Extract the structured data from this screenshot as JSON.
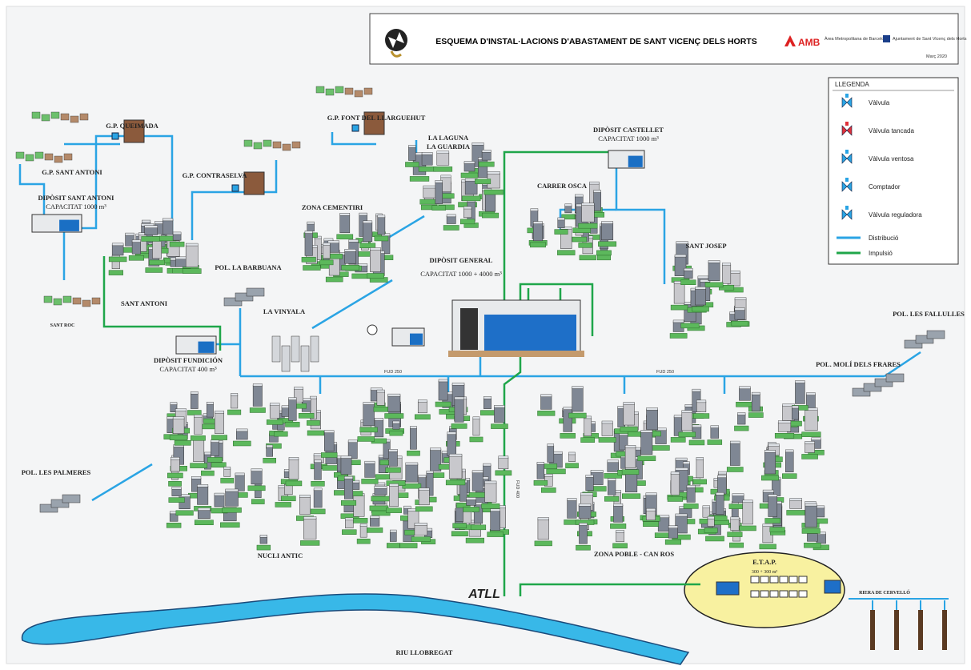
{
  "header": {
    "title": "ESQUEMA D'INSTAL·LACIONS D'ABASTAMENT DE SANT VICENÇ DELS HORTS",
    "amb": "AMB",
    "amb_subtitle": "Àrea Metropolitana de Barcelona",
    "ajuntament": "Ajuntament de Sant Vicenç dels Horts",
    "date": "Març 2020"
  },
  "legend": {
    "title": "LLEGENDA",
    "items": [
      "Vàlvula",
      "Vàlvula tancada",
      "Vàlvula ventosa",
      "Comptador",
      "Vàlvula reguladora",
      "Distribució",
      "Impulsió"
    ]
  },
  "nodes": [
    {
      "name": "G.P. QUEIMADA"
    },
    {
      "name": "G.P. SANT ANTONI"
    },
    {
      "name": "DIPÒSIT SANT ANTONI",
      "capacity": "CAPACITAT 1000 m³"
    },
    {
      "name": "G.P. CONTRASELVA"
    },
    {
      "name": "G.P. FONT DEL LLARGUEHUT"
    },
    {
      "name": "LA LAGUNA",
      "name_line2": "LA GUARDIA"
    },
    {
      "name": "DIPÒSIT CASTELLET",
      "capacity": "CAPACITAT 1000 m³"
    },
    {
      "name": "CARRER OSCA"
    },
    {
      "name": "ZONA CEMENTIRI"
    },
    {
      "name": "SANT ANTONI"
    },
    {
      "name": "SANT ROC"
    },
    {
      "name": "POL. LA BARBUANA"
    },
    {
      "name": "DIPÒSIT GENERAL",
      "capacity": "CAPACITAT 1000 + 4000 m³"
    },
    {
      "name": "LA VINYALA"
    },
    {
      "name": "SANT JOSEP"
    },
    {
      "name": "POL. LES FALLULLES"
    },
    {
      "name": "POL. MOLÍ DELS FRARES"
    },
    {
      "name": "DIPÒSIT FUNDICIÓN",
      "capacity": "CAPACITAT 400 m³"
    },
    {
      "name": "POL. LES PALMERES"
    },
    {
      "name": "NUCLI ANTIC"
    },
    {
      "name": "ZONA POBLE - CAN ROS"
    },
    {
      "name": "E.T.A.P.",
      "capacity": "300 + 300 m³"
    },
    {
      "name": "ATLL"
    },
    {
      "name": "RIU LLOBREGAT"
    },
    {
      "name": "RIERA DE CERVELLÓ"
    }
  ],
  "pipe_labels": [
    "FUD 250",
    "FUD 250",
    "FUD 400"
  ]
}
